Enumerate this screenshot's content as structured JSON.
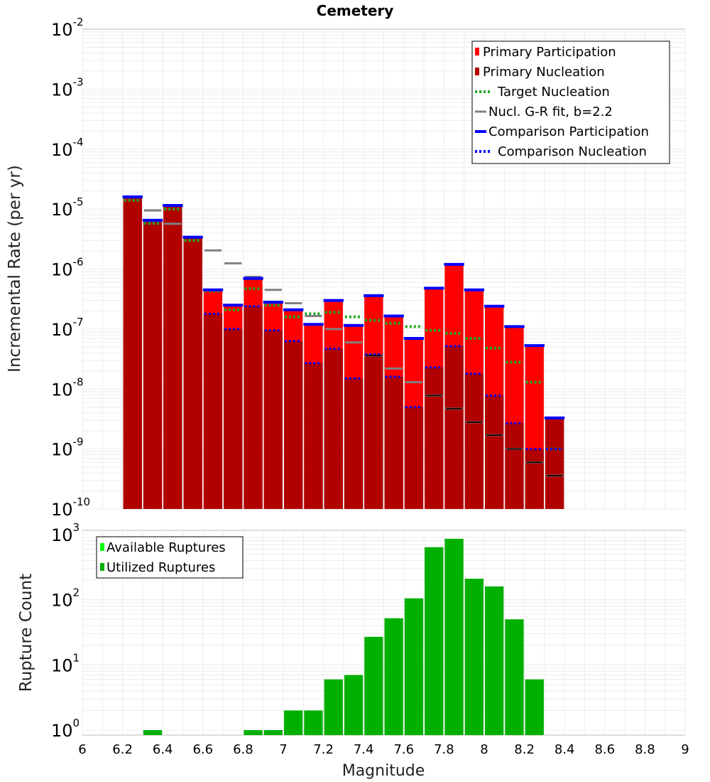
{
  "title": "Cemetery",
  "colors": {
    "primary_participation": "#ff0000",
    "primary_nucleation": "#b00000",
    "target_nucleation": "#22aa22",
    "gr_fit": "#808080",
    "comparison": "#0000ff",
    "available_ruptures": "#00ff00",
    "utilized_ruptures": "#00b000"
  },
  "chart_data": [
    {
      "type": "bar",
      "name": "rates",
      "ylabel": "Incremental Rate (per yr)",
      "yscale": "log",
      "ylim_exp": [
        -10,
        -2
      ],
      "xlim": [
        6,
        9
      ],
      "bin_width": 0.1,
      "y_ticks": [
        {
          "base": "10",
          "exp": "-10"
        },
        {
          "base": "10",
          "exp": "-9"
        },
        {
          "base": "10",
          "exp": "-8"
        },
        {
          "base": "10",
          "exp": "-7"
        },
        {
          "base": "10",
          "exp": "-6"
        },
        {
          "base": "10",
          "exp": "-5"
        },
        {
          "base": "10",
          "exp": "-4"
        },
        {
          "base": "10",
          "exp": "-3"
        },
        {
          "base": "10",
          "exp": "-2"
        }
      ],
      "legend": [
        {
          "label": "Primary Participation",
          "style": "bar-light"
        },
        {
          "label": "Primary Nucleation",
          "style": "bar-dark"
        },
        {
          "label": "Target Nucleation",
          "style": "dotted-green"
        },
        {
          "label": "Nucl. G-R fit, b=2.2",
          "style": "solid-gray"
        },
        {
          "label": "Comparison Participation",
          "style": "solid-blue"
        },
        {
          "label": "Comparison Nucleation",
          "style": "dotted-blue"
        }
      ],
      "legend_position": "top-right",
      "centers": [
        6.25,
        6.35,
        6.45,
        6.55,
        6.65,
        6.75,
        6.85,
        6.95,
        7.05,
        7.15,
        7.25,
        7.35,
        7.45,
        7.55,
        7.65,
        7.75,
        7.85,
        7.95,
        8.05,
        8.15,
        8.25,
        8.35
      ],
      "series": [
        {
          "name": "Primary Participation",
          "values": [
            1.6e-05,
            6.5e-06,
            1.15e-05,
            3.4e-06,
            4.5e-07,
            2.5e-07,
            7e-07,
            2.8e-07,
            2.1e-07,
            1.2e-07,
            3e-07,
            1.15e-07,
            3.6e-07,
            1.65e-07,
            7e-08,
            4.8e-07,
            1.2e-06,
            4.5e-07,
            2.4e-07,
            1.1e-07,
            5.3e-08,
            3.3e-09
          ]
        },
        {
          "name": "Primary Nucleation",
          "values": [
            1.6e-05,
            6.5e-06,
            1.15e-05,
            3.4e-06,
            1.8e-07,
            1e-07,
            2.4e-07,
            9.5e-08,
            6.3e-08,
            2.7e-08,
            4.7e-08,
            1.5e-08,
            3.8e-08,
            1.6e-08,
            5e-09,
            2.3e-08,
            5.2e-08,
            1.8e-08,
            7.8e-09,
            2.7e-09,
            1e-09,
            3.3e-09
          ]
        },
        {
          "name": "Target Nucleation",
          "values": [
            1.4e-05,
            5.8e-06,
            1e-05,
            3e-06,
            4.3e-07,
            2.1e-07,
            4.7e-07,
            2.5e-07,
            1.6e-07,
            1.8e-07,
            1.9e-07,
            1.6e-07,
            1.4e-07,
            1.25e-07,
            1.1e-07,
            9.5e-08,
            8.5e-08,
            7e-08,
            4.8e-08,
            2.8e-08,
            1.3e-08,
            1e-09
          ]
        },
        {
          "name": "Nucl. G-R fit, b=2.2",
          "values": [
            1.6e-05,
            9.5e-06,
            5.7e-06,
            3.4e-06,
            2.05e-06,
            1.25e-06,
            7.4e-07,
            4.5e-07,
            2.7e-07,
            1.65e-07,
            1e-07,
            6e-08,
            3.6e-08,
            2.2e-08,
            1.3e-08,
            7.8e-09,
            4.7e-09,
            2.8e-09,
            1.7e-09,
            1e-09,
            6e-10,
            3.6e-10
          ]
        },
        {
          "name": "Comparison Participation",
          "values": [
            1.6e-05,
            6.5e-06,
            1.15e-05,
            3.4e-06,
            4.5e-07,
            2.5e-07,
            7e-07,
            2.8e-07,
            2.1e-07,
            1.2e-07,
            3e-07,
            1.15e-07,
            3.6e-07,
            1.65e-07,
            7e-08,
            4.8e-07,
            1.2e-06,
            4.5e-07,
            2.4e-07,
            1.1e-07,
            5.3e-08,
            3.3e-09
          ]
        },
        {
          "name": "Comparison Nucleation",
          "values": [
            1.6e-05,
            6.5e-06,
            1.15e-05,
            3.4e-06,
            1.8e-07,
            1e-07,
            2.4e-07,
            9.5e-08,
            6.3e-08,
            2.7e-08,
            4.7e-08,
            1.5e-08,
            3.8e-08,
            1.6e-08,
            5e-09,
            2.3e-08,
            5.2e-08,
            1.8e-08,
            7.8e-09,
            2.7e-09,
            1e-09,
            1e-09
          ]
        }
      ]
    },
    {
      "type": "bar",
      "name": "counts",
      "xlabel": "Magnitude",
      "ylabel": "Rupture Count",
      "yscale": "log",
      "xlim": [
        6,
        9
      ],
      "bin_width": 0.1,
      "x_ticks": [
        "6",
        "6.2",
        "6.4",
        "6.6",
        "6.8",
        "7",
        "7.2",
        "7.4",
        "7.6",
        "7.8",
        "8",
        "8.2",
        "8.4",
        "8.6",
        "8.8",
        "9"
      ],
      "y_ticks": [
        {
          "base": "10",
          "exp": "0"
        },
        {
          "base": "10",
          "exp": "1"
        },
        {
          "base": "10",
          "exp": "2"
        },
        {
          "base": "10",
          "exp": "3"
        }
      ],
      "legend": [
        {
          "label": "Available Ruptures",
          "style": "bar-light-green"
        },
        {
          "label": "Utilized Ruptures",
          "style": "bar-green"
        }
      ],
      "legend_position": "top-left",
      "centers": [
        6.35,
        6.85,
        6.95,
        7.05,
        7.15,
        7.25,
        7.35,
        7.45,
        7.55,
        7.65,
        7.75,
        7.85,
        7.95,
        8.05,
        8.15,
        8.25
      ],
      "series": [
        {
          "name": "Utilized Ruptures",
          "values": [
            1,
            1,
            1,
            2,
            2,
            6,
            7,
            27,
            52,
            105,
            640,
            860,
            210,
            160,
            50,
            6
          ]
        }
      ]
    }
  ]
}
